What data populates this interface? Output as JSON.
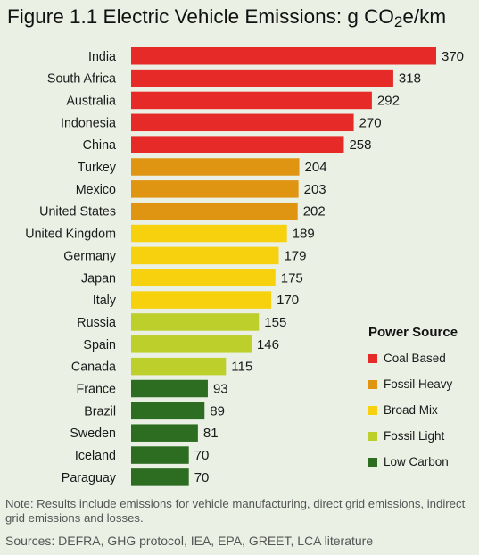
{
  "title": {
    "prefix": "Figure 1.1  Electric Vehicle Emissions: g CO",
    "subscript": "2",
    "suffix": "e/km"
  },
  "chart_data": {
    "type": "bar",
    "orientation": "horizontal",
    "title": "Figure 1.1  Electric Vehicle Emissions: g CO2e/km",
    "categories": [
      "India",
      "South Africa",
      "Australia",
      "Indonesia",
      "China",
      "Turkey",
      "Mexico",
      "United States",
      "United Kingdom",
      "Germany",
      "Japan",
      "Italy",
      "Russia",
      "Spain",
      "Canada",
      "France",
      "Brazil",
      "Sweden",
      "Iceland",
      "Paraguay"
    ],
    "values": [
      370,
      318,
      292,
      270,
      258,
      204,
      203,
      202,
      189,
      179,
      175,
      170,
      155,
      146,
      115,
      93,
      89,
      81,
      70,
      70
    ],
    "groups": [
      "Coal Based",
      "Coal Based",
      "Coal Based",
      "Coal Based",
      "Coal Based",
      "Fossil Heavy",
      "Fossil Heavy",
      "Fossil Heavy",
      "Broad Mix",
      "Broad Mix",
      "Broad Mix",
      "Broad Mix",
      "Fossil Light",
      "Fossil Light",
      "Fossil Light",
      "Low Carbon",
      "Low Carbon",
      "Low Carbon",
      "Low Carbon",
      "Low Carbon"
    ],
    "xlim": [
      0,
      370
    ],
    "grid": false,
    "legend_position": "right"
  },
  "legend": {
    "title": "Power Source",
    "items": [
      {
        "label": "Coal Based",
        "color": "#e52a28"
      },
      {
        "label": "Fossil Heavy",
        "color": "#e09512"
      },
      {
        "label": "Broad Mix",
        "color": "#f8d10e"
      },
      {
        "label": "Fossil Light",
        "color": "#bccf2a"
      },
      {
        "label": "Low Carbon",
        "color": "#2c6d22"
      }
    ]
  },
  "note": "Note:  Results include emissions for vehicle manufacturing, direct grid emissions, indirect grid emissions and losses.",
  "sources": "Sources: DEFRA, GHG protocol, IEA, EPA, GREET, LCA literature"
}
